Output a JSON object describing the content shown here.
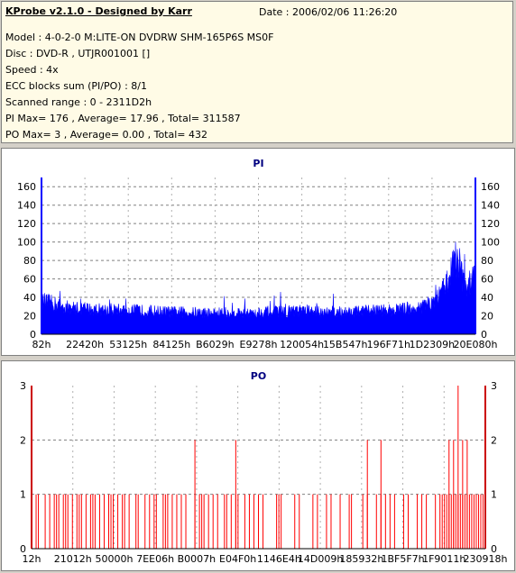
{
  "header": {
    "title": "KProbe v2.1.0 - Designed by Karr",
    "date": "Date : 2006/02/06 11:26:20",
    "lines": [
      "Model : 4-0-2-0 M:LITE-ON DVDRW SHM-165P6S MS0F",
      "Disc : DVD-R , UTJR001001 []",
      "Speed : 4x",
      "ECC blocks sum (PI/PO) : 8/1",
      "Scanned range : 0 - 2311D2h",
      "PI Max= 176 , Average= 17.96 , Total= 311587",
      "PO Max= 3 , Average= 0.00 , Total= 432"
    ]
  },
  "chart_data": [
    {
      "type": "area",
      "title": "PI",
      "ylim": [
        0,
        170
      ],
      "yticks": [
        0,
        20,
        40,
        60,
        80,
        100,
        120,
        140,
        160
      ],
      "xtick_labels": [
        "82h",
        "22420h",
        "53125h",
        "84125h",
        "B6029h",
        "E9278h",
        "120054h",
        "15B547h",
        "196F71h",
        "1D2309h",
        "20E080h"
      ],
      "grid": true,
      "color": "#0000ff",
      "x_range": [
        0,
        1
      ],
      "profile_x": [
        0,
        0.02,
        0.06,
        0.12,
        0.2,
        0.3,
        0.4,
        0.5,
        0.6,
        0.7,
        0.8,
        0.86,
        0.88,
        0.9,
        0.92,
        0.94,
        0.95,
        0.96,
        0.965,
        0.97,
        0.98,
        0.99,
        1.0
      ],
      "profile_y": [
        36,
        34,
        29,
        27,
        26,
        24,
        23,
        24,
        25,
        24,
        26,
        28,
        30,
        34,
        42,
        62,
        84,
        80,
        76,
        60,
        52,
        58,
        66
      ]
    },
    {
      "type": "bar",
      "title": "PO",
      "ylim": [
        0,
        3
      ],
      "yticks": [
        0,
        1,
        2,
        3
      ],
      "xtick_labels": [
        "12h",
        "21012h",
        "50000h",
        "7EE06h",
        "B0007h",
        "E04F0h",
        "1146E4h",
        "14D009h",
        "185932h",
        "1BF5F7h",
        "1F9011h",
        "230918h"
      ],
      "grid": true,
      "color": "#ff0000",
      "x_range": [
        0,
        1
      ],
      "spikes_1": [
        0.01,
        0.015,
        0.03,
        0.04,
        0.05,
        0.055,
        0.06,
        0.07,
        0.075,
        0.08,
        0.09,
        0.1,
        0.105,
        0.11,
        0.12,
        0.13,
        0.135,
        0.14,
        0.15,
        0.16,
        0.17,
        0.175,
        0.18,
        0.19,
        0.2,
        0.205,
        0.215,
        0.23,
        0.235,
        0.25,
        0.26,
        0.27,
        0.275,
        0.29,
        0.295,
        0.3,
        0.31,
        0.32,
        0.33,
        0.34,
        0.36,
        0.37,
        0.375,
        0.38,
        0.39,
        0.4,
        0.41,
        0.425,
        0.43,
        0.44,
        0.45,
        0.455,
        0.47,
        0.48,
        0.49,
        0.5,
        0.51,
        0.54,
        0.545,
        0.55,
        0.58,
        0.59,
        0.62,
        0.63,
        0.65,
        0.66,
        0.68,
        0.7,
        0.705,
        0.73,
        0.74,
        0.76,
        0.77,
        0.78,
        0.79,
        0.8,
        0.82,
        0.83,
        0.85,
        0.86,
        0.87,
        0.89,
        0.9,
        0.905,
        0.91,
        0.915,
        0.92,
        0.925,
        0.93,
        0.935,
        0.94,
        0.945,
        0.95,
        0.955,
        0.96,
        0.965,
        0.97,
        0.975,
        0.98,
        0.985,
        0.99,
        0.995
      ],
      "spikes_2": [
        0.36,
        0.45,
        0.74,
        0.77,
        0.92,
        0.93,
        0.95,
        0.96
      ],
      "spikes_3": [
        0.94
      ]
    }
  ]
}
